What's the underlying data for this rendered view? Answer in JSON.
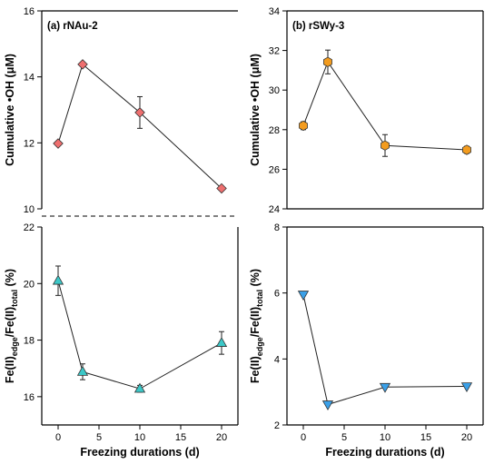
{
  "chart_data": [
    {
      "type": "line",
      "title": "(a) rNAu-2",
      "ylabel": "Cumulative •OH (μM)",
      "xlabel": "",
      "xlim": [
        -2,
        22
      ],
      "ylim": [
        10,
        16
      ],
      "yticks": [
        10,
        12,
        14,
        16
      ],
      "x": [
        0,
        3,
        10,
        20
      ],
      "series": [
        {
          "values": [
            11.98,
            14.38,
            12.92,
            10.62
          ],
          "err": [
            0.0,
            0.0,
            0.48,
            0.0
          ]
        }
      ],
      "marker": "diamond",
      "color": "#ee6f6f"
    },
    {
      "type": "line",
      "title": "(b) rSWy-3",
      "ylabel": "Cumulative •OH (μM)",
      "xlabel": "",
      "xlim": [
        -2,
        22
      ],
      "ylim": [
        24,
        34
      ],
      "yticks": [
        24,
        26,
        28,
        30,
        32,
        34
      ],
      "x": [
        0,
        3,
        10,
        20
      ],
      "series": [
        {
          "values": [
            28.2,
            31.42,
            27.2,
            26.98
          ],
          "err": [
            0.2,
            0.6,
            0.55,
            0.18
          ]
        }
      ],
      "marker": "hexagon",
      "color": "#f39c1f"
    },
    {
      "type": "line",
      "title": "",
      "ylabel": {
        "base": "Fe(II)",
        "sub1": "edge",
        "mid": "/Fe(II)",
        "sub2": "total",
        "tail": " (%)"
      },
      "xlabel": "Freezing durations (d)",
      "xlim": [
        -2,
        22
      ],
      "ylim": [
        15,
        22
      ],
      "yticks": [
        16,
        18,
        20,
        22
      ],
      "xticks": [
        0,
        5,
        10,
        15,
        20
      ],
      "x": [
        0,
        3,
        10,
        20
      ],
      "series": [
        {
          "values": [
            20.1,
            16.88,
            16.28,
            17.9
          ],
          "err": [
            0.52,
            0.28,
            0.12,
            0.4
          ]
        }
      ],
      "marker": "triangle-up",
      "color": "#3cc8c8"
    },
    {
      "type": "line",
      "title": "",
      "ylabel": {
        "base": "Fe(II)",
        "sub1": "edge",
        "mid": "/Fe(II)",
        "sub2": "total",
        "tail": " (%)"
      },
      "xlabel": "Freezing durations (d)",
      "xlim": [
        -2,
        22
      ],
      "ylim": [
        2,
        8
      ],
      "yticks": [
        2,
        4,
        6,
        8
      ],
      "xticks": [
        0,
        5,
        10,
        15,
        20
      ],
      "x": [
        0,
        3,
        10,
        20
      ],
      "series": [
        {
          "values": [
            5.95,
            2.62,
            3.15,
            3.17
          ],
          "err": [
            0.0,
            0.0,
            0.0,
            0.0
          ]
        }
      ],
      "marker": "triangle-down",
      "color": "#3aa0e8"
    }
  ]
}
